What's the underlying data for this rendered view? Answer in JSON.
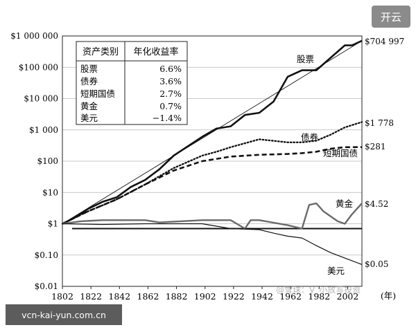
{
  "badge": "开云",
  "source_label": "vcn-kai-yun.com.cn",
  "watermark": "@雪球：V_小放写投资",
  "chart_data": {
    "type": "line",
    "y_scale": "log",
    "xlim": [
      1802,
      2012
    ],
    "ylim": [
      0.01,
      1000000
    ],
    "x_ticks": [
      "1802",
      "1822",
      "1842",
      "1862",
      "1882",
      "1902",
      "1922",
      "1942",
      "1962",
      "1982",
      "2002"
    ],
    "x_tick_values": [
      1802,
      1822,
      1842,
      1862,
      1882,
      1902,
      1922,
      1942,
      1962,
      1982,
      2002
    ],
    "x_unit": "(年)",
    "y_ticks": [
      "$1 000 000",
      "$100 000",
      "$10 000",
      "$1 000",
      "$100",
      "$10",
      "$1",
      "$0.10",
      "$0.01"
    ],
    "y_tick_values": [
      1000000,
      100000,
      10000,
      1000,
      100,
      10,
      1,
      0.1,
      0.01
    ],
    "reference_line": 0.7,
    "table": {
      "headers": [
        "资产类别",
        "年化收益率"
      ],
      "rows": [
        [
          "股票",
          "6.6%"
        ],
        [
          "债券",
          "3.6%"
        ],
        [
          "短期国债",
          "2.7%"
        ],
        [
          "黄金",
          "0.7%"
        ],
        [
          "美元",
          "−1.4%"
        ]
      ]
    },
    "series": [
      {
        "name": "股票",
        "end_label": "$704 997",
        "style": "solid-thick",
        "color": "#111111",
        "x": [
          1802,
          1810,
          1820,
          1830,
          1840,
          1850,
          1860,
          1870,
          1880,
          1890,
          1900,
          1910,
          1920,
          1930,
          1940,
          1950,
          1960,
          1970,
          1980,
          1990,
          2000,
          2005,
          2012
        ],
        "y": [
          1,
          1.5,
          3,
          5,
          7,
          15,
          25,
          55,
          150,
          300,
          600,
          1100,
          1300,
          3000,
          3500,
          8000,
          50000,
          80000,
          80000,
          200000,
          500000,
          500000,
          704997
        ]
      },
      {
        "name": "",
        "style": "thin-trend",
        "color": "#111111",
        "x": [
          1802,
          2012
        ],
        "y": [
          1,
          704997
        ]
      },
      {
        "name": "债券",
        "end_label": "$1 778",
        "style": "dotted",
        "color": "#111111",
        "x": [
          1802,
          1820,
          1840,
          1860,
          1880,
          1900,
          1910,
          1920,
          1940,
          1960,
          1970,
          1980,
          1990,
          2000,
          2012
        ],
        "y": [
          1,
          2.5,
          6,
          18,
          60,
          150,
          200,
          280,
          500,
          400,
          400,
          450,
          700,
          1200,
          1778
        ]
      },
      {
        "name": "短期国债",
        "end_label": "$281",
        "style": "dashed",
        "color": "#111111",
        "x": [
          1802,
          1820,
          1840,
          1860,
          1880,
          1900,
          1920,
          1940,
          1960,
          1970,
          1980,
          1990,
          2000,
          2012
        ],
        "y": [
          1,
          2.5,
          6,
          18,
          50,
          100,
          140,
          160,
          170,
          180,
          200,
          250,
          280,
          281
        ]
      },
      {
        "name": "黄金",
        "end_label": "$4.52",
        "style": "solid-gray",
        "color": "#6a6a6a",
        "x": [
          1802,
          1815,
          1830,
          1860,
          1870,
          1900,
          1920,
          1930,
          1934,
          1940,
          1960,
          1970,
          1975,
          1980,
          1985,
          1995,
          2000,
          2005,
          2012
        ],
        "y": [
          1,
          1.2,
          1.3,
          1.3,
          1.1,
          1.3,
          1.3,
          0.7,
          1.3,
          1.3,
          0.9,
          0.7,
          4,
          4.5,
          2.5,
          1.2,
          1,
          2,
          4.52
        ]
      },
      {
        "name": "美元",
        "end_label": "$0.05",
        "style": "solid-thin",
        "color": "#111111",
        "x": [
          1802,
          1830,
          1860,
          1880,
          1900,
          1920,
          1940,
          1950,
          1960,
          1970,
          1980,
          1990,
          2000,
          2012
        ],
        "y": [
          1,
          0.95,
          1,
          1,
          1,
          0.7,
          0.65,
          0.5,
          0.4,
          0.35,
          0.2,
          0.12,
          0.08,
          0.05
        ]
      }
    ]
  }
}
